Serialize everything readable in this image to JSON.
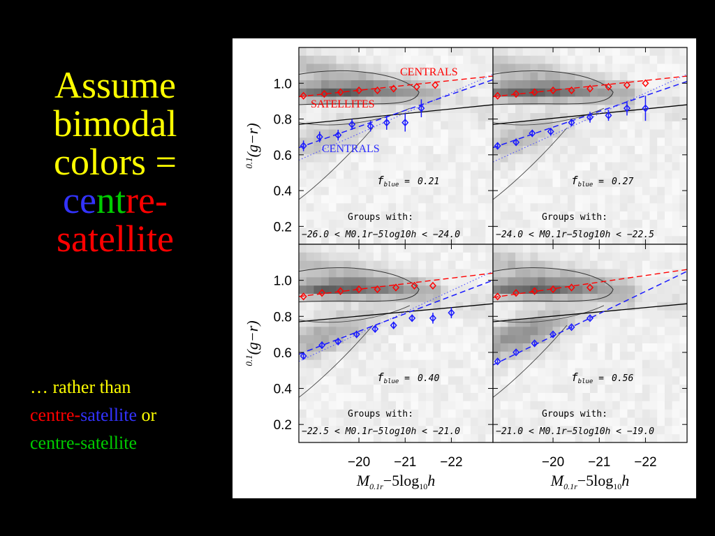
{
  "slide": {
    "title_lines": [
      {
        "segments": [
          {
            "text": "Assume",
            "color": "#ffff00"
          }
        ]
      },
      {
        "segments": [
          {
            "text": "bimodal",
            "color": "#ffff00"
          }
        ]
      },
      {
        "segments": [
          {
            "text": "colors =",
            "color": "#ffff00"
          }
        ]
      },
      {
        "segments": [
          {
            "text": "ce",
            "color": "#3333ff"
          },
          {
            "text": "nt",
            "color": "#00cc00"
          },
          {
            "text": "re-",
            "color": "#ff0000"
          }
        ]
      },
      {
        "segments": [
          {
            "text": "satellite",
            "color": "#ff0000"
          }
        ]
      }
    ],
    "subtitle_lines": [
      {
        "segments": [
          {
            "text": "… rather than",
            "color": "#ffff00"
          }
        ]
      },
      {
        "segments": [
          {
            "text": "centre-",
            "color": "#ff0000"
          },
          {
            "text": "satellite",
            "color": "#3333ff"
          },
          {
            "text": " or",
            "color": "#ffff00"
          }
        ]
      },
      {
        "segments": [
          {
            "text": "centre-satellite",
            "color": "#00cc00"
          }
        ]
      }
    ]
  },
  "chart_data": {
    "type": "scatter",
    "xlabel": "M_{0.1r} − 5log10 h",
    "ylabel": "0.1(g−r)",
    "xlim": [
      -18.7,
      -22.9
    ],
    "ylim": [
      0.1,
      1.2
    ],
    "xticks": [
      -20,
      -21,
      -22
    ],
    "xtick_labels": [
      "−20",
      "−21",
      "−22"
    ],
    "yticks": [
      0.2,
      0.4,
      0.6,
      0.8,
      1.0
    ],
    "ytick_labels": [
      "0.2",
      "0.4",
      "0.6",
      "0.8",
      "1.0"
    ],
    "labels": {
      "centrals_red": "CENTRALS",
      "satellites": "SATELLITES",
      "centrals_blue": "CENTRALS"
    },
    "colors": {
      "red": "#ff0000",
      "blue": "#1a1aff",
      "black": "#000000"
    },
    "panels": [
      {
        "fblue_label": "f_blue =",
        "fblue": "0.21",
        "groups_label": "Groups with:",
        "range": "−26.0 < M0.1r−5log10h < −24.0",
        "red_points": [
          [
            -18.8,
            0.93
          ],
          [
            -19.25,
            0.94
          ],
          [
            -19.6,
            0.95
          ],
          [
            -20.0,
            0.96
          ],
          [
            -20.4,
            0.96
          ],
          [
            -20.75,
            0.97
          ],
          [
            -21.25,
            0.98
          ],
          [
            -21.65,
            0.99
          ]
        ],
        "red_fit": [
          [
            -18.7,
            0.925
          ],
          [
            -22.9,
            1.04
          ]
        ],
        "blue_points": [
          [
            -18.8,
            0.65
          ],
          [
            -19.15,
            0.7
          ],
          [
            -19.55,
            0.71
          ],
          [
            -19.85,
            0.77
          ],
          [
            -20.25,
            0.76
          ],
          [
            -20.6,
            0.78
          ],
          [
            -21.0,
            0.78
          ],
          [
            -21.35,
            0.86
          ]
        ],
        "blue_err": [
          0.03,
          0.03,
          0.03,
          0.03,
          0.03,
          0.04,
          0.05,
          0.05
        ],
        "blue_fit": [
          [
            -18.7,
            0.64
          ],
          [
            -22.9,
            1.02
          ]
        ],
        "black_line": [
          [
            -18.7,
            0.77
          ],
          [
            -22.9,
            0.88
          ]
        ],
        "dotted_line": [
          [
            -18.7,
            0.57
          ],
          [
            -22.9,
            1.05
          ]
        ]
      },
      {
        "fblue_label": "f_blue =",
        "fblue": "0.27",
        "groups_label": "Groups with:",
        "range": "−24.0 < M0.1r−5log10h < −22.5",
        "red_points": [
          [
            -18.8,
            0.93
          ],
          [
            -19.2,
            0.94
          ],
          [
            -19.6,
            0.95
          ],
          [
            -20.0,
            0.96
          ],
          [
            -20.4,
            0.96
          ],
          [
            -20.8,
            0.97
          ],
          [
            -21.2,
            0.98
          ],
          [
            -21.6,
            0.99
          ],
          [
            -22.0,
            1.0
          ]
        ],
        "red_fit": [
          [
            -18.7,
            0.925
          ],
          [
            -22.9,
            1.04
          ]
        ],
        "blue_points": [
          [
            -18.8,
            0.65
          ],
          [
            -19.2,
            0.67
          ],
          [
            -19.55,
            0.72
          ],
          [
            -19.95,
            0.73
          ],
          [
            -20.4,
            0.78
          ],
          [
            -20.8,
            0.81
          ],
          [
            -21.2,
            0.82
          ],
          [
            -21.6,
            0.86
          ],
          [
            -22.0,
            0.86
          ]
        ],
        "blue_err": [
          0.02,
          0.02,
          0.02,
          0.02,
          0.02,
          0.03,
          0.03,
          0.04,
          0.07
        ],
        "blue_fit": [
          [
            -18.7,
            0.64
          ],
          [
            -22.9,
            1.01
          ]
        ],
        "black_line": [
          [
            -18.7,
            0.77
          ],
          [
            -22.9,
            0.88
          ]
        ],
        "dotted_line": [
          [
            -18.7,
            0.56
          ],
          [
            -22.9,
            1.05
          ]
        ]
      },
      {
        "fblue_label": "f_blue =",
        "fblue": "0.40",
        "groups_label": "Groups with:",
        "range": "−22.5 < M0.1r−5log10h < −21.0",
        "red_points": [
          [
            -18.8,
            0.91
          ],
          [
            -19.2,
            0.93
          ],
          [
            -19.6,
            0.94
          ],
          [
            -20.0,
            0.95
          ],
          [
            -20.4,
            0.95
          ],
          [
            -20.8,
            0.96
          ],
          [
            -21.2,
            0.97
          ],
          [
            -21.6,
            0.97
          ]
        ],
        "red_fit": [
          [
            -18.7,
            0.91
          ],
          [
            -22.9,
            1.04
          ]
        ],
        "blue_points": [
          [
            -18.8,
            0.58
          ],
          [
            -19.2,
            0.64
          ],
          [
            -19.55,
            0.66
          ],
          [
            -19.95,
            0.7
          ],
          [
            -20.35,
            0.73
          ],
          [
            -20.75,
            0.75
          ],
          [
            -21.15,
            0.79
          ],
          [
            -21.6,
            0.79
          ],
          [
            -22.0,
            0.82
          ]
        ],
        "blue_err": [
          0.02,
          0.02,
          0.02,
          0.02,
          0.02,
          0.02,
          0.02,
          0.03,
          0.03
        ],
        "blue_fit": [
          [
            -18.7,
            0.59
          ],
          [
            -22.9,
            1.0
          ]
        ],
        "black_line": [
          [
            -18.7,
            0.77
          ],
          [
            -22.9,
            0.87
          ]
        ],
        "dotted_line": [
          [
            -18.7,
            0.55
          ],
          [
            -22.9,
            1.05
          ]
        ]
      },
      {
        "fblue_label": "f_blue =",
        "fblue": "0.56",
        "groups_label": "Groups with:",
        "range": "−21.0 < M0.1r−5log10h < −19.0",
        "red_points": [
          [
            -18.8,
            0.91
          ],
          [
            -19.2,
            0.93
          ],
          [
            -19.6,
            0.94
          ],
          [
            -20.0,
            0.95
          ],
          [
            -20.4,
            0.96
          ],
          [
            -20.8,
            0.96
          ]
        ],
        "red_fit": [
          [
            -18.7,
            0.905
          ],
          [
            -22.9,
            1.06
          ]
        ],
        "blue_points": [
          [
            -18.8,
            0.55
          ],
          [
            -19.2,
            0.6
          ],
          [
            -19.6,
            0.65
          ],
          [
            -20.0,
            0.7
          ],
          [
            -20.4,
            0.74
          ],
          [
            -20.8,
            0.79
          ]
        ],
        "blue_err": [
          0.01,
          0.01,
          0.01,
          0.01,
          0.01,
          0.01
        ],
        "blue_fit": [
          [
            -18.7,
            0.53
          ],
          [
            -22.9,
            1.05
          ]
        ],
        "black_line": [
          [
            -18.7,
            0.77
          ],
          [
            -22.9,
            0.87
          ]
        ],
        "dotted_line": null
      }
    ]
  }
}
